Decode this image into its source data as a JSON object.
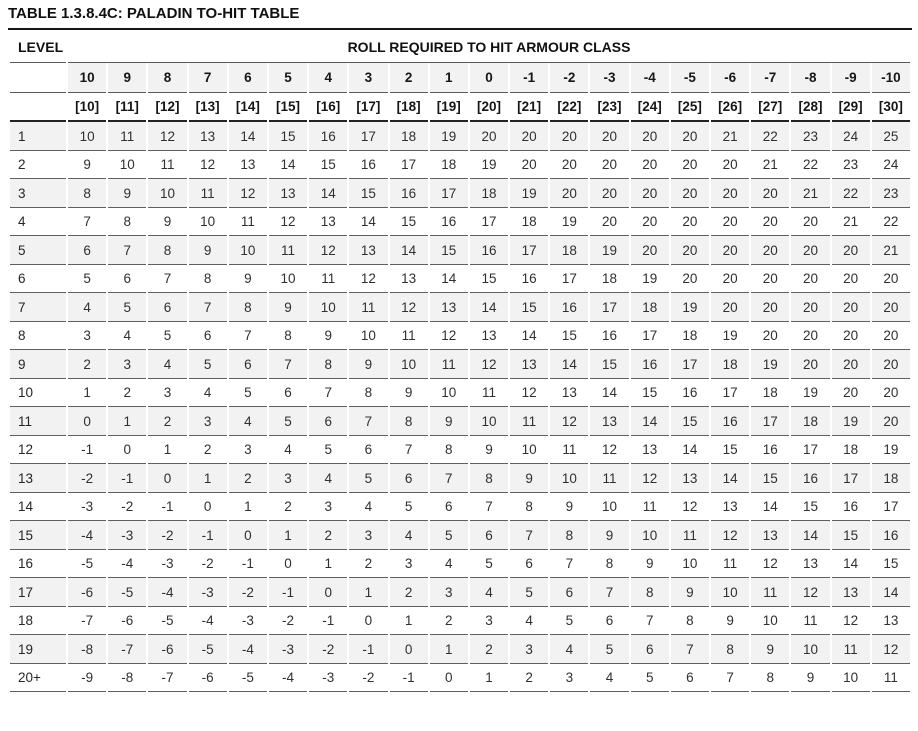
{
  "table": {
    "title": "TABLE 1.3.8.4C: PALADIN TO-HIT TABLE",
    "level_header": "LEVEL",
    "span_header": "ROLL REQUIRED TO HIT ARMOUR CLASS",
    "armour_class_values": [
      "10",
      "9",
      "8",
      "7",
      "6",
      "5",
      "4",
      "3",
      "2",
      "1",
      "0",
      "-1",
      "-2",
      "-3",
      "-4",
      "-5",
      "-6",
      "-7",
      "-8",
      "-9",
      "-10"
    ],
    "bracket_values": [
      "[10]",
      "[11]",
      "[12]",
      "[13]",
      "[14]",
      "[15]",
      "[16]",
      "[17]",
      "[18]",
      "[19]",
      "[20]",
      "[21]",
      "[22]",
      "[23]",
      "[24]",
      "[25]",
      "[26]",
      "[27]",
      "[28]",
      "[29]",
      "[30]"
    ],
    "rows": [
      {
        "level": "1",
        "values": [
          10,
          11,
          12,
          13,
          14,
          15,
          16,
          17,
          18,
          19,
          20,
          20,
          20,
          20,
          20,
          20,
          21,
          22,
          23,
          24,
          25
        ]
      },
      {
        "level": "2",
        "values": [
          9,
          10,
          11,
          12,
          13,
          14,
          15,
          16,
          17,
          18,
          19,
          20,
          20,
          20,
          20,
          20,
          20,
          21,
          22,
          23,
          24
        ]
      },
      {
        "level": "3",
        "values": [
          8,
          9,
          10,
          11,
          12,
          13,
          14,
          15,
          16,
          17,
          18,
          19,
          20,
          20,
          20,
          20,
          20,
          20,
          21,
          22,
          23
        ]
      },
      {
        "level": "4",
        "values": [
          7,
          8,
          9,
          10,
          11,
          12,
          13,
          14,
          15,
          16,
          17,
          18,
          19,
          20,
          20,
          20,
          20,
          20,
          20,
          21,
          22
        ]
      },
      {
        "level": "5",
        "values": [
          6,
          7,
          8,
          9,
          10,
          11,
          12,
          13,
          14,
          15,
          16,
          17,
          18,
          19,
          20,
          20,
          20,
          20,
          20,
          20,
          21
        ]
      },
      {
        "level": "6",
        "values": [
          5,
          6,
          7,
          8,
          9,
          10,
          11,
          12,
          13,
          14,
          15,
          16,
          17,
          18,
          19,
          20,
          20,
          20,
          20,
          20,
          20
        ]
      },
      {
        "level": "7",
        "values": [
          4,
          5,
          6,
          7,
          8,
          9,
          10,
          11,
          12,
          13,
          14,
          15,
          16,
          17,
          18,
          19,
          20,
          20,
          20,
          20,
          20
        ]
      },
      {
        "level": "8",
        "values": [
          3,
          4,
          5,
          6,
          7,
          8,
          9,
          10,
          11,
          12,
          13,
          14,
          15,
          16,
          17,
          18,
          19,
          20,
          20,
          20,
          20
        ]
      },
      {
        "level": "9",
        "values": [
          2,
          3,
          4,
          5,
          6,
          7,
          8,
          9,
          10,
          11,
          12,
          13,
          14,
          15,
          16,
          17,
          18,
          19,
          20,
          20,
          20
        ]
      },
      {
        "level": "10",
        "values": [
          1,
          2,
          3,
          4,
          5,
          6,
          7,
          8,
          9,
          10,
          11,
          12,
          13,
          14,
          15,
          16,
          17,
          18,
          19,
          20,
          20
        ]
      },
      {
        "level": "11",
        "values": [
          0,
          1,
          2,
          3,
          4,
          5,
          6,
          7,
          8,
          9,
          10,
          11,
          12,
          13,
          14,
          15,
          16,
          17,
          18,
          19,
          20
        ]
      },
      {
        "level": "12",
        "values": [
          -1,
          0,
          1,
          2,
          3,
          4,
          5,
          6,
          7,
          8,
          9,
          10,
          11,
          12,
          13,
          14,
          15,
          16,
          17,
          18,
          19
        ]
      },
      {
        "level": "13",
        "values": [
          -2,
          -1,
          0,
          1,
          2,
          3,
          4,
          5,
          6,
          7,
          8,
          9,
          10,
          11,
          12,
          13,
          14,
          15,
          16,
          17,
          18
        ]
      },
      {
        "level": "14",
        "values": [
          -3,
          -2,
          -1,
          0,
          1,
          2,
          3,
          4,
          5,
          6,
          7,
          8,
          9,
          10,
          11,
          12,
          13,
          14,
          15,
          16,
          17
        ]
      },
      {
        "level": "15",
        "values": [
          -4,
          -3,
          -2,
          -1,
          0,
          1,
          2,
          3,
          4,
          5,
          6,
          7,
          8,
          9,
          10,
          11,
          12,
          13,
          14,
          15,
          16
        ]
      },
      {
        "level": "16",
        "values": [
          -5,
          -4,
          -3,
          -2,
          -1,
          0,
          1,
          2,
          3,
          4,
          5,
          6,
          7,
          8,
          9,
          10,
          11,
          12,
          13,
          14,
          15
        ]
      },
      {
        "level": "17",
        "values": [
          -6,
          -5,
          -4,
          -3,
          -2,
          -1,
          0,
          1,
          2,
          3,
          4,
          5,
          6,
          7,
          8,
          9,
          10,
          11,
          12,
          13,
          14
        ]
      },
      {
        "level": "18",
        "values": [
          -7,
          -6,
          -5,
          -4,
          -3,
          -2,
          -1,
          0,
          1,
          2,
          3,
          4,
          5,
          6,
          7,
          8,
          9,
          10,
          11,
          12,
          13
        ]
      },
      {
        "level": "19",
        "values": [
          -8,
          -7,
          -6,
          -5,
          -4,
          -3,
          -2,
          -1,
          0,
          1,
          2,
          3,
          4,
          5,
          6,
          7,
          8,
          9,
          10,
          11,
          12
        ]
      },
      {
        "level": "20+",
        "values": [
          -9,
          -8,
          -7,
          -6,
          -5,
          -4,
          -3,
          -2,
          -1,
          0,
          1,
          2,
          3,
          4,
          5,
          6,
          7,
          8,
          9,
          10,
          11
        ]
      }
    ]
  },
  "colors": {
    "stripe": "#f2f2f2",
    "row_rule": "#5f5f5f",
    "heavy_rule": "#1a1a1a",
    "header_text": "#111111",
    "data_text": "#303030"
  }
}
